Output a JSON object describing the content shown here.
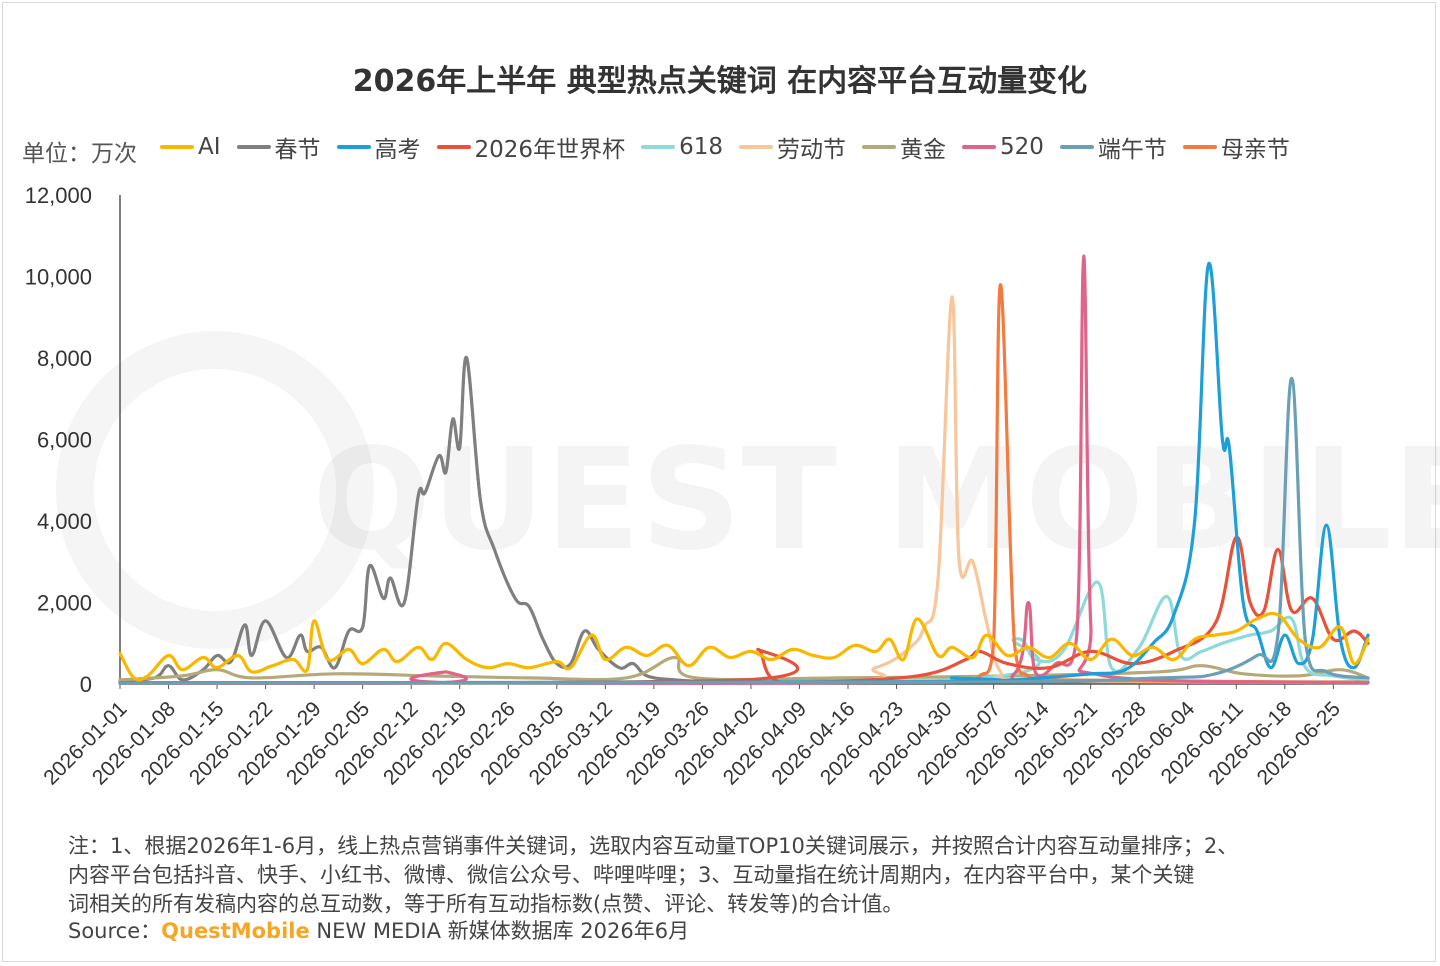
{
  "colors": {
    "AI": "#F9B800",
    "春节": "#7f7f7f",
    "高考": "#1E9FD8",
    "2026年世界杯": "#E8513A",
    "618": "#8ED9D9",
    "劳动节": "#F9C59A",
    "黄金": "#B5A97A",
    "520": "#E0648A",
    "端午节": "#6A9FB5",
    "母亲节": "#F47B3F"
  },
  "watermark": "QUEST MOBILE",
  "unit_label": "单位：万次",
  "footnote": {
    "lines": [
      "注：1、根据2026年1-6月，线上热点营销事件关键词，选取内容互动量TOP10关键词展示，并按照合计内容互动量排序；2、",
      "内容平台包括抖音、快手、小红书、微博、微信公众号、哔哩哔哩；3、互动量指在统计周期内，在内容平台中，某个关键",
      "词相关的所有发稿内容的总互动数，等于所有互动指标数(点赞、评论、转发等)的合计值。"
    ],
    "source_prefix": "Source：",
    "source_brand": "QuestMobile",
    "source_rest": " NEW MEDIA 新媒体数据库 2026年6月"
  },
  "chart_data": {
    "type": "line",
    "title": "2026年上半年 典型热点关键词 在内容平台互动量变化",
    "ylabel": "单位：万次",
    "ylim": [
      0,
      12000
    ],
    "yticks": [
      0,
      2000,
      4000,
      6000,
      8000,
      10000,
      12000
    ],
    "ytick_labels": [
      "0",
      "2,000",
      "4,000",
      "6,000",
      "8,000",
      "10,000",
      "12,000"
    ],
    "x_start": "2026-01-01",
    "x_end": "2026-06-30",
    "x_ticks": [
      "2026-01-01",
      "2026-01-08",
      "2026-01-15",
      "2026-01-22",
      "2026-01-29",
      "2026-02-05",
      "2026-02-12",
      "2026-02-19",
      "2026-02-26",
      "2026-03-05",
      "2026-03-12",
      "2026-03-19",
      "2026-03-26",
      "2026-04-02",
      "2026-04-09",
      "2026-04-16",
      "2026-04-23",
      "2026-04-30",
      "2026-05-07",
      "2026-05-14",
      "2026-05-21",
      "2026-05-28",
      "2026-06-04",
      "2026-06-11",
      "2026-06-18",
      "2026-06-25"
    ],
    "legend_position": "top",
    "grid": false,
    "series": [
      {
        "name": "AI",
        "points": [
          [
            "2026-01-01",
            750
          ],
          [
            "2026-01-03",
            150
          ],
          [
            "2026-01-05",
            200
          ],
          [
            "2026-01-08",
            700
          ],
          [
            "2026-01-10",
            350
          ],
          [
            "2026-01-13",
            650
          ],
          [
            "2026-01-15",
            400
          ],
          [
            "2026-01-18",
            700
          ],
          [
            "2026-01-20",
            300
          ],
          [
            "2026-01-23",
            450
          ],
          [
            "2026-01-26",
            600
          ],
          [
            "2026-01-28",
            350
          ],
          [
            "2026-01-29",
            1550
          ],
          [
            "2026-01-31",
            600
          ],
          [
            "2026-02-03",
            850
          ],
          [
            "2026-02-05",
            500
          ],
          [
            "2026-02-08",
            850
          ],
          [
            "2026-02-10",
            550
          ],
          [
            "2026-02-13",
            900
          ],
          [
            "2026-02-15",
            600
          ],
          [
            "2026-02-17",
            1000
          ],
          [
            "2026-02-20",
            600
          ],
          [
            "2026-02-23",
            400
          ],
          [
            "2026-02-26",
            500
          ],
          [
            "2026-03-01",
            400
          ],
          [
            "2026-03-05",
            550
          ],
          [
            "2026-03-07",
            400
          ],
          [
            "2026-03-10",
            1200
          ],
          [
            "2026-03-12",
            600
          ],
          [
            "2026-03-15",
            900
          ],
          [
            "2026-03-18",
            700
          ],
          [
            "2026-03-21",
            950
          ],
          [
            "2026-03-24",
            450
          ],
          [
            "2026-03-27",
            900
          ],
          [
            "2026-03-30",
            650
          ],
          [
            "2026-04-02",
            800
          ],
          [
            "2026-04-05",
            600
          ],
          [
            "2026-04-08",
            850
          ],
          [
            "2026-04-11",
            700
          ],
          [
            "2026-04-14",
            650
          ],
          [
            "2026-04-17",
            950
          ],
          [
            "2026-04-20",
            800
          ],
          [
            "2026-04-22",
            1100
          ],
          [
            "2026-04-24",
            600
          ],
          [
            "2026-04-26",
            1600
          ],
          [
            "2026-04-29",
            700
          ],
          [
            "2026-05-01",
            900
          ],
          [
            "2026-05-04",
            650
          ],
          [
            "2026-05-06",
            1200
          ],
          [
            "2026-05-09",
            700
          ],
          [
            "2026-05-12",
            900
          ],
          [
            "2026-05-15",
            650
          ],
          [
            "2026-05-18",
            1000
          ],
          [
            "2026-05-21",
            600
          ],
          [
            "2026-05-24",
            1100
          ],
          [
            "2026-05-27",
            700
          ],
          [
            "2026-05-30",
            900
          ],
          [
            "2026-06-02",
            600
          ],
          [
            "2026-06-05",
            1100
          ],
          [
            "2026-06-08",
            1200
          ],
          [
            "2026-06-11",
            1300
          ],
          [
            "2026-06-14",
            1600
          ],
          [
            "2026-06-17",
            1700
          ],
          [
            "2026-06-20",
            1100
          ],
          [
            "2026-06-23",
            900
          ],
          [
            "2026-06-26",
            1400
          ],
          [
            "2026-06-28",
            500
          ],
          [
            "2026-06-30",
            1100
          ]
        ]
      },
      {
        "name": "春节",
        "points": [
          [
            "2026-01-01",
            80
          ],
          [
            "2026-01-06",
            150
          ],
          [
            "2026-01-08",
            450
          ],
          [
            "2026-01-10",
            100
          ],
          [
            "2026-01-13",
            350
          ],
          [
            "2026-01-15",
            700
          ],
          [
            "2026-01-17",
            550
          ],
          [
            "2026-01-19",
            1450
          ],
          [
            "2026-01-20",
            700
          ],
          [
            "2026-01-22",
            1550
          ],
          [
            "2026-01-25",
            650
          ],
          [
            "2026-01-27",
            1200
          ],
          [
            "2026-01-28",
            800
          ],
          [
            "2026-01-30",
            900
          ],
          [
            "2026-02-01",
            400
          ],
          [
            "2026-02-03",
            1300
          ],
          [
            "2026-02-05",
            1400
          ],
          [
            "2026-02-06",
            2900
          ],
          [
            "2026-02-08",
            2100
          ],
          [
            "2026-02-09",
            2600
          ],
          [
            "2026-02-11",
            2000
          ],
          [
            "2026-02-13",
            4600
          ],
          [
            "2026-02-14",
            4700
          ],
          [
            "2026-02-16",
            5600
          ],
          [
            "2026-02-17",
            5200
          ],
          [
            "2026-02-18",
            6500
          ],
          [
            "2026-02-19",
            5800
          ],
          [
            "2026-02-20",
            8000
          ],
          [
            "2026-02-22",
            4500
          ],
          [
            "2026-02-24",
            3300
          ],
          [
            "2026-02-27",
            2100
          ],
          [
            "2026-03-01",
            1900
          ],
          [
            "2026-03-03",
            1100
          ],
          [
            "2026-03-05",
            500
          ],
          [
            "2026-03-07",
            500
          ],
          [
            "2026-03-09",
            1300
          ],
          [
            "2026-03-11",
            850
          ],
          [
            "2026-03-14",
            400
          ],
          [
            "2026-03-16",
            500
          ],
          [
            "2026-03-18",
            200
          ],
          [
            "2026-03-22",
            100
          ],
          [
            "2026-03-27",
            60
          ],
          [
            "2026-04-05",
            80
          ],
          [
            "2026-05-10",
            50
          ],
          [
            "2026-06-30",
            50
          ]
        ]
      },
      {
        "name": "高考",
        "points": [
          [
            "2026-01-01",
            30
          ],
          [
            "2026-04-28",
            60
          ],
          [
            "2026-05-01",
            150
          ],
          [
            "2026-05-07",
            80
          ],
          [
            "2026-05-14",
            150
          ],
          [
            "2026-05-21",
            250
          ],
          [
            "2026-05-26",
            350
          ],
          [
            "2026-05-30",
            1000
          ],
          [
            "2026-06-02",
            1700
          ],
          [
            "2026-06-05",
            4000
          ],
          [
            "2026-06-07",
            10300
          ],
          [
            "2026-06-09",
            6000
          ],
          [
            "2026-06-10",
            5800
          ],
          [
            "2026-06-12",
            2000
          ],
          [
            "2026-06-14",
            1300
          ],
          [
            "2026-06-16",
            400
          ],
          [
            "2026-06-18",
            1200
          ],
          [
            "2026-06-20",
            500
          ],
          [
            "2026-06-22",
            1100
          ],
          [
            "2026-06-24",
            3900
          ],
          [
            "2026-06-26",
            1100
          ],
          [
            "2026-06-28",
            400
          ],
          [
            "2026-06-30",
            1200
          ]
        ]
      },
      {
        "name": "2026年世界杯",
        "points": [
          [
            "2026-01-01",
            30
          ],
          [
            "2026-04-01",
            100
          ],
          [
            "2026-04-03",
            850
          ],
          [
            "2026-04-05",
            150
          ],
          [
            "2026-04-10",
            50
          ],
          [
            "2026-04-26",
            200
          ],
          [
            "2026-05-03",
            600
          ],
          [
            "2026-05-05",
            800
          ],
          [
            "2026-05-09",
            500
          ],
          [
            "2026-05-15",
            400
          ],
          [
            "2026-05-21",
            800
          ],
          [
            "2026-05-27",
            500
          ],
          [
            "2026-06-02",
            800
          ],
          [
            "2026-06-08",
            1500
          ],
          [
            "2026-06-11",
            3600
          ],
          [
            "2026-06-13",
            2000
          ],
          [
            "2026-06-15",
            1800
          ],
          [
            "2026-06-17",
            3300
          ],
          [
            "2026-06-19",
            1800
          ],
          [
            "2026-06-22",
            2100
          ],
          [
            "2026-06-25",
            1100
          ],
          [
            "2026-06-28",
            1300
          ],
          [
            "2026-06-30",
            1000
          ]
        ]
      },
      {
        "name": "618",
        "points": [
          [
            "2026-01-01",
            20
          ],
          [
            "2026-05-01",
            100
          ],
          [
            "2026-05-10",
            1100
          ],
          [
            "2026-05-13",
            600
          ],
          [
            "2026-05-17",
            800
          ],
          [
            "2026-05-22",
            2500
          ],
          [
            "2026-05-24",
            400
          ],
          [
            "2026-05-28",
            900
          ],
          [
            "2026-06-01",
            2150
          ],
          [
            "2026-06-03",
            700
          ],
          [
            "2026-06-06",
            800
          ],
          [
            "2026-06-09",
            1000
          ],
          [
            "2026-06-13",
            1200
          ],
          [
            "2026-06-16",
            1300
          ],
          [
            "2026-06-19",
            1600
          ],
          [
            "2026-06-21",
            400
          ],
          [
            "2026-06-25",
            200
          ],
          [
            "2026-06-30",
            100
          ]
        ]
      },
      {
        "name": "劳动节",
        "points": [
          [
            "2026-01-01",
            20
          ],
          [
            "2026-04-10",
            50
          ],
          [
            "2026-04-20",
            400
          ],
          [
            "2026-04-25",
            900
          ],
          [
            "2026-04-27",
            1400
          ],
          [
            "2026-04-29",
            2600
          ],
          [
            "2026-05-01",
            9500
          ],
          [
            "2026-05-02",
            3100
          ],
          [
            "2026-05-04",
            3000
          ],
          [
            "2026-05-06",
            1500
          ],
          [
            "2026-05-08",
            300
          ],
          [
            "2026-05-12",
            100
          ],
          [
            "2026-06-30",
            30
          ]
        ]
      },
      {
        "name": "黄金",
        "points": [
          [
            "2026-01-01",
            100
          ],
          [
            "2026-01-10",
            200
          ],
          [
            "2026-01-15",
            350
          ],
          [
            "2026-01-20",
            150
          ],
          [
            "2026-02-01",
            250
          ],
          [
            "2026-02-15",
            200
          ],
          [
            "2026-03-01",
            150
          ],
          [
            "2026-03-15",
            150
          ],
          [
            "2026-03-22",
            650
          ],
          [
            "2026-03-25",
            150
          ],
          [
            "2026-04-15",
            150
          ],
          [
            "2026-05-10",
            200
          ],
          [
            "2026-05-31",
            300
          ],
          [
            "2026-06-06",
            450
          ],
          [
            "2026-06-12",
            250
          ],
          [
            "2026-06-20",
            200
          ],
          [
            "2026-06-26",
            350
          ],
          [
            "2026-06-30",
            150
          ]
        ]
      },
      {
        "name": "520",
        "points": [
          [
            "2026-01-01",
            20
          ],
          [
            "2026-02-16",
            30
          ],
          [
            "2026-02-17",
            300
          ],
          [
            "2026-02-18",
            30
          ],
          [
            "2026-05-01",
            50
          ],
          [
            "2026-05-10",
            250
          ],
          [
            "2026-05-12",
            2000
          ],
          [
            "2026-05-13",
            300
          ],
          [
            "2026-05-16",
            500
          ],
          [
            "2026-05-19",
            1200
          ],
          [
            "2026-05-20",
            10500
          ],
          [
            "2026-05-21",
            1500
          ],
          [
            "2026-05-23",
            200
          ],
          [
            "2026-06-30",
            30
          ]
        ]
      },
      {
        "name": "端午节",
        "points": [
          [
            "2026-01-01",
            20
          ],
          [
            "2026-05-01",
            50
          ],
          [
            "2026-05-31",
            150
          ],
          [
            "2026-06-08",
            250
          ],
          [
            "2026-06-14",
            700
          ],
          [
            "2026-06-17",
            1200
          ],
          [
            "2026-06-19",
            7500
          ],
          [
            "2026-06-21",
            1000
          ],
          [
            "2026-06-24",
            300
          ],
          [
            "2026-06-30",
            150
          ]
        ]
      },
      {
        "name": "母亲节",
        "points": [
          [
            "2026-01-01",
            20
          ],
          [
            "2026-04-20",
            40
          ],
          [
            "2026-05-02",
            100
          ],
          [
            "2026-05-05",
            200
          ],
          [
            "2026-05-07",
            1000
          ],
          [
            "2026-05-08",
            9800
          ],
          [
            "2026-05-10",
            1000
          ],
          [
            "2026-05-12",
            200
          ],
          [
            "2026-05-16",
            100
          ],
          [
            "2026-06-30",
            40
          ]
        ]
      }
    ]
  }
}
